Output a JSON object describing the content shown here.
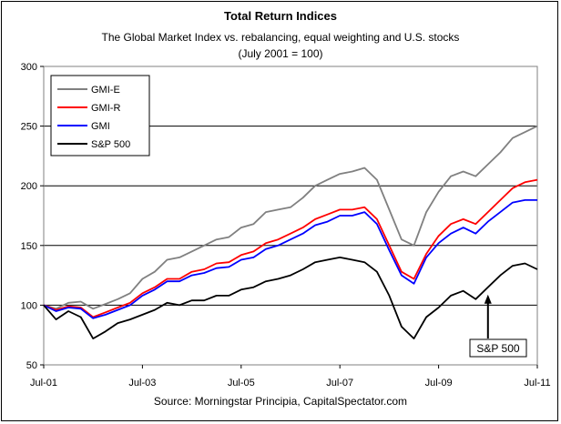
{
  "chart_data": {
    "type": "line",
    "title": "Total Return Indices",
    "subtitle": "The Global Market Index vs. rebalancing, equal weighting and U.S. stocks",
    "subtitle2": "(July 2001 = 100)",
    "source": "Source: Morningstar Principia, CapitalSpectator.com",
    "xlabel": "",
    "ylabel": "",
    "x_ticks": [
      "Jul-01",
      "Jul-03",
      "Jul-05",
      "Jul-07",
      "Jul-09",
      "Jul-11"
    ],
    "y_ticks": [
      50,
      100,
      150,
      200,
      250,
      300
    ],
    "ylim": [
      50,
      300
    ],
    "grid": "horizontal",
    "legend_position": "top-left",
    "annotation": {
      "text": "S&P 500",
      "target_series": "S&P 500"
    },
    "x": [
      "2001-07",
      "2001-10",
      "2002-01",
      "2002-04",
      "2002-07",
      "2002-10",
      "2003-01",
      "2003-04",
      "2003-07",
      "2003-10",
      "2004-01",
      "2004-04",
      "2004-07",
      "2004-10",
      "2005-01",
      "2005-04",
      "2005-07",
      "2005-10",
      "2006-01",
      "2006-04",
      "2006-07",
      "2006-10",
      "2007-01",
      "2007-04",
      "2007-07",
      "2007-10",
      "2008-01",
      "2008-04",
      "2008-07",
      "2008-10",
      "2009-01",
      "2009-04",
      "2009-07",
      "2009-10",
      "2010-01",
      "2010-04",
      "2010-07",
      "2010-10",
      "2011-01",
      "2011-04",
      "2011-07"
    ],
    "series": [
      {
        "name": "GMI-E",
        "color": "#808080",
        "values": [
          100,
          97,
          102,
          103,
          97,
          101,
          105,
          110,
          122,
          128,
          138,
          140,
          145,
          150,
          155,
          157,
          165,
          168,
          178,
          180,
          182,
          190,
          200,
          205,
          210,
          212,
          215,
          205,
          180,
          155,
          150,
          178,
          195,
          208,
          212,
          208,
          218,
          228,
          240,
          245,
          250
        ]
      },
      {
        "name": "GMI-R",
        "color": "#ff0000",
        "values": [
          100,
          96,
          99,
          98,
          90,
          94,
          98,
          102,
          110,
          115,
          122,
          122,
          128,
          130,
          135,
          136,
          142,
          145,
          152,
          155,
          160,
          165,
          172,
          176,
          180,
          180,
          182,
          172,
          150,
          128,
          122,
          143,
          158,
          168,
          172,
          168,
          178,
          188,
          198,
          203,
          205
        ]
      },
      {
        "name": "GMI",
        "color": "#0000ff",
        "values": [
          100,
          95,
          98,
          97,
          89,
          92,
          96,
          100,
          108,
          113,
          120,
          120,
          125,
          127,
          131,
          132,
          138,
          140,
          147,
          150,
          155,
          160,
          167,
          170,
          175,
          175,
          178,
          168,
          146,
          125,
          118,
          140,
          152,
          160,
          165,
          160,
          170,
          178,
          186,
          188,
          188
        ]
      },
      {
        "name": "S&P 500",
        "color": "#000000",
        "values": [
          100,
          88,
          95,
          90,
          72,
          78,
          85,
          88,
          92,
          96,
          102,
          100,
          104,
          104,
          108,
          108,
          113,
          115,
          120,
          122,
          125,
          130,
          136,
          138,
          140,
          138,
          136,
          128,
          108,
          82,
          72,
          90,
          98,
          108,
          112,
          105,
          115,
          125,
          133,
          135,
          130
        ]
      }
    ]
  }
}
